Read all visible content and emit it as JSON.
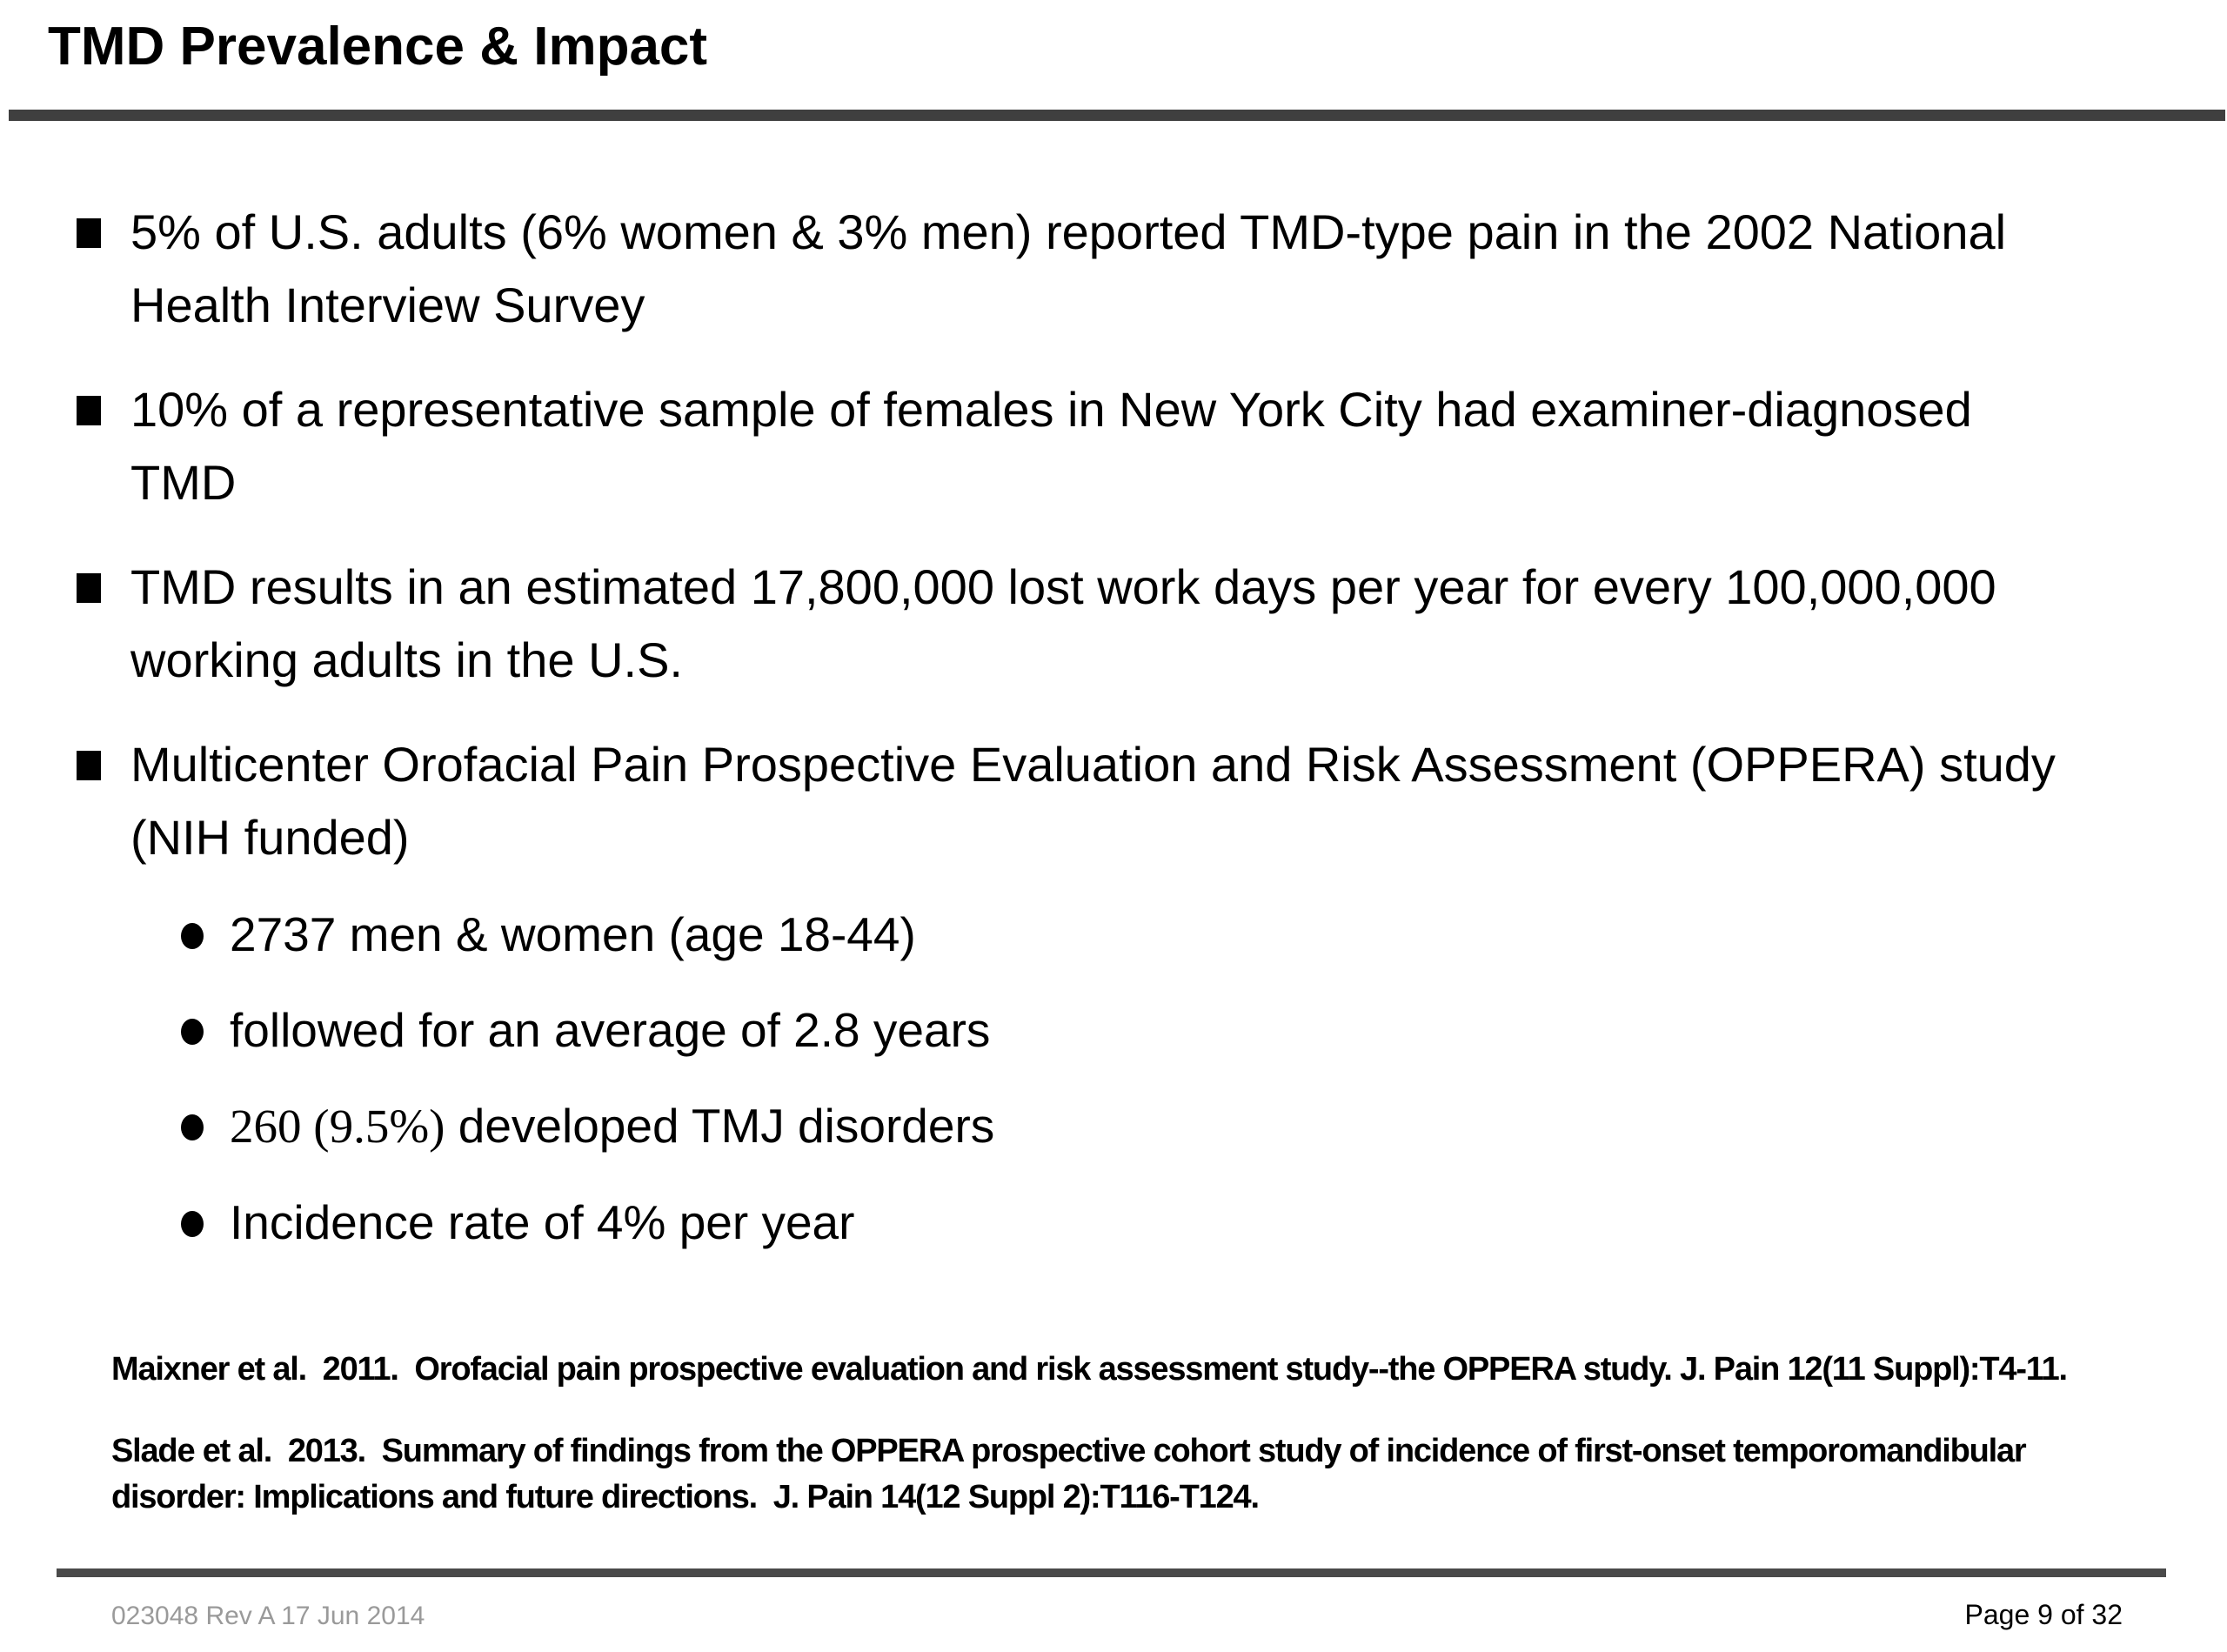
{
  "slide": {
    "title": "TMD Prevalence & Impact",
    "bullets": [
      {
        "text": "5% of U.S. adults (6% women & 3% men) reported TMD-type pain in the 2002 National Health Interview Survey"
      },
      {
        "text": "10% of a representative sample of females in New York City had examiner-diagnosed TMD"
      },
      {
        "text": "TMD results in an estimated 17,800,000 lost work days per year for every 100,000,000 working adults in the U.S."
      },
      {
        "text": "Multicenter Orofacial Pain Prospective Evaluation and Risk Assessment (OPPERA) study (NIH funded)"
      }
    ],
    "sub_bullets": [
      {
        "text": "2737 men & women (age 18-44)"
      },
      {
        "text": "followed for an average of 2.8 years"
      },
      {
        "serif_prefix": "260 (9.5%)",
        "text": " developed TMJ disorders"
      },
      {
        "text": "Incidence rate of 4% per year"
      }
    ],
    "references": [
      "Maixner et al.  2011.  Orofacial pain prospective evaluation and risk assessment study--the OPPERA study. J. Pain 12(11 Suppl):T4-11.",
      "Slade et al.  2013.  Summary of findings from the OPPERA prospective cohort study of incidence of first-onset temporomandibular disorder: Implications and future directions.  J. Pain 14(12 Suppl 2):T116-T124."
    ],
    "footer": {
      "doc_id": "023048 Rev A 17 Jun 2014",
      "page": "Page 9 of 32"
    },
    "colors": {
      "text": "#000000",
      "title_rule": "#3f3f3f",
      "footer_rule": "#4a4a4a",
      "footer_gray": "#9a9a9a"
    }
  }
}
